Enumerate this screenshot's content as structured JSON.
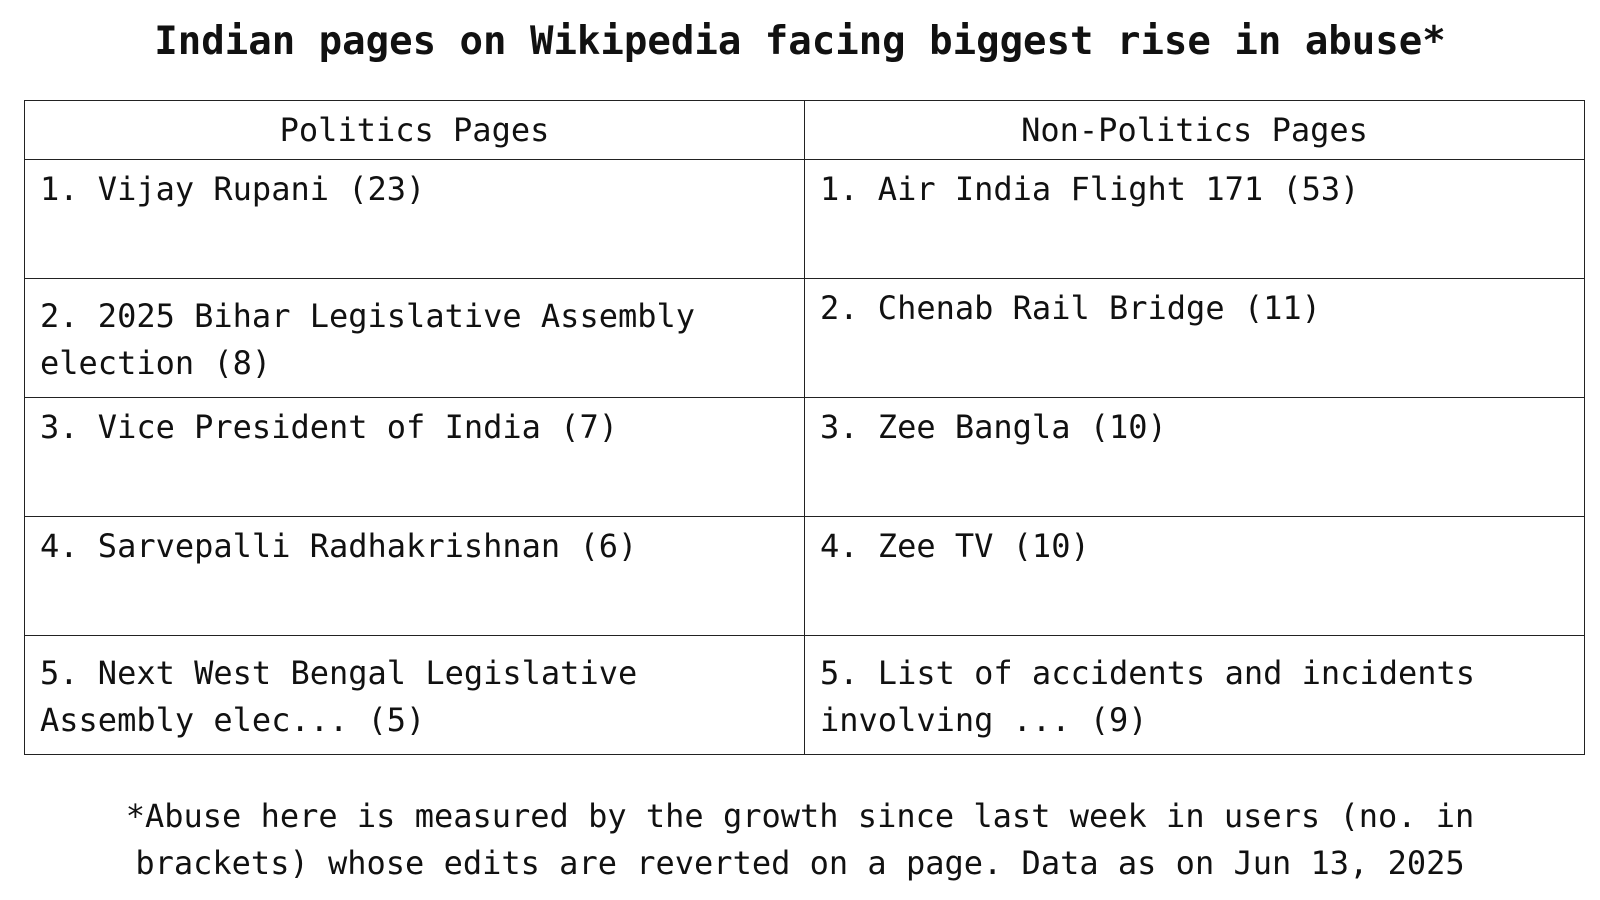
{
  "chart_data": {
    "type": "table",
    "title": "Indian pages on Wikipedia facing biggest rise in abuse*",
    "columns": [
      "Politics Pages",
      "Non-Politics Pages"
    ],
    "rows": [
      [
        "1. Vijay Rupani (23)",
        "1. Air India Flight 171 (53)"
      ],
      [
        "2. 2025 Bihar Legislative Assembly election (8)",
        "2. Chenab Rail Bridge (11)"
      ],
      [
        "3. Vice President of India (7)",
        "3. Zee Bangla (10)"
      ],
      [
        "4. Sarvepalli Radhakrishnan (6)",
        "4. Zee TV (10)"
      ],
      [
        "5. Next West Bengal Legislative Assembly elec... (5)",
        "5. List of accidents and incidents involving ... (9)"
      ]
    ],
    "footnote": [
      "*Abuse here is measured by the growth since last week in users (no. in",
      "brackets) whose edits are reverted on a page. Data as on Jun 13, 2025"
    ]
  }
}
